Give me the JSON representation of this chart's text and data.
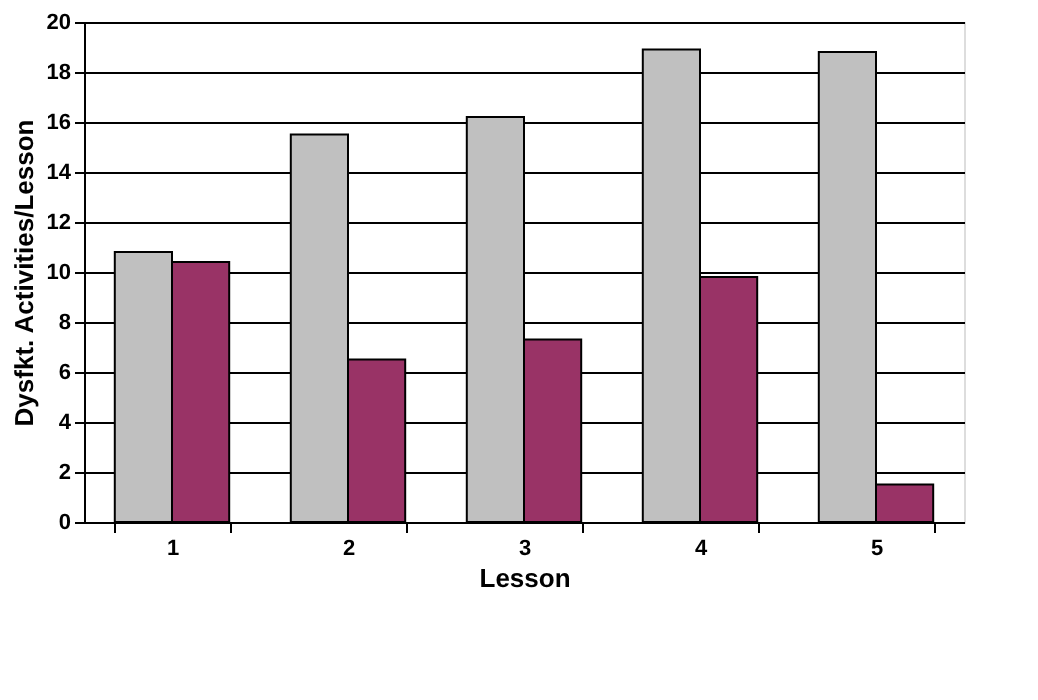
{
  "chart_data": {
    "type": "bar",
    "xlabel": "Lesson",
    "ylabel": "Dysfkt. Activities/Lesson",
    "categories": [
      "1",
      "2",
      "3",
      "4",
      "5"
    ],
    "series": [
      {
        "color": "#c0c0c0",
        "values": [
          10.8,
          15.5,
          16.2,
          18.9,
          18.8
        ]
      },
      {
        "color": "#993366",
        "values": [
          10.4,
          6.5,
          7.3,
          9.8,
          1.5
        ]
      }
    ],
    "ylim": [
      0,
      20
    ],
    "yticks": [
      0,
      2,
      4,
      6,
      8,
      10,
      12,
      14,
      16,
      18,
      20
    ],
    "grid": "y",
    "legend": false
  }
}
